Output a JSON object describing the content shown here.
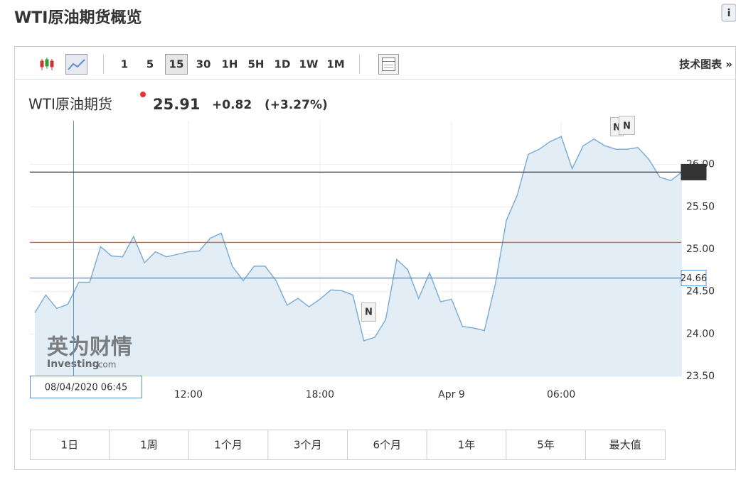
{
  "header": {
    "title": "WTI原油期货概览"
  },
  "toolbar": {
    "intervals": [
      "1",
      "5",
      "15",
      "30",
      "1H",
      "5H",
      "1D",
      "1W",
      "1M"
    ],
    "selected_index": 2,
    "link": "技术图表 »"
  },
  "quote": {
    "name": "WTI原油期货",
    "price": 25.91,
    "change": "+0.82",
    "change_pct": "(+3.27%)"
  },
  "chart_data": {
    "type": "line",
    "categories": [
      null,
      null,
      null,
      null,
      null,
      null,
      null,
      null,
      null,
      null,
      null,
      null,
      null,
      null,
      "12:00",
      null,
      null,
      null,
      null,
      null,
      null,
      null,
      null,
      null,
      null,
      null,
      "18:00",
      null,
      null,
      null,
      null,
      null,
      null,
      null,
      null,
      null,
      null,
      null,
      "Apr 9",
      null,
      null,
      null,
      null,
      null,
      null,
      null,
      null,
      null,
      "06:00",
      null,
      null,
      null,
      null,
      null,
      null,
      null,
      null,
      null,
      null,
      null
    ],
    "values": [
      24.25,
      24.46,
      24.3,
      24.35,
      24.61,
      24.61,
      25.03,
      24.92,
      24.91,
      25.15,
      24.84,
      24.97,
      24.91,
      24.94,
      24.97,
      24.98,
      25.13,
      25.19,
      24.8,
      24.63,
      24.8,
      24.8,
      24.63,
      24.34,
      24.42,
      24.32,
      24.41,
      24.52,
      24.51,
      24.46,
      23.92,
      23.96,
      24.17,
      24.88,
      24.76,
      24.42,
      24.72,
      24.38,
      24.41,
      24.09,
      24.07,
      24.04,
      24.59,
      25.34,
      25.64,
      26.12,
      26.18,
      26.27,
      26.33,
      25.95,
      26.22,
      26.3,
      26.22,
      26.18,
      26.18,
      26.2,
      26.06,
      25.85,
      25.81,
      25.91
    ],
    "color": "#7eaed6",
    "ylim": [
      23.5,
      26.5
    ],
    "yticks": [
      {
        "value": 23.5,
        "label": "23.50"
      },
      {
        "value": 24,
        "label": "24.00"
      },
      {
        "value": 24.5,
        "label": "24.50"
      },
      {
        "value": 25,
        "label": "25.00"
      },
      {
        "value": 25.5,
        "label": "25.50"
      },
      {
        "value": 26,
        "label": "26.00"
      }
    ],
    "grid": true,
    "lines": [
      {
        "value": 25.91,
        "color": "#333333",
        "labeled": true
      },
      {
        "value": 25.08,
        "color": "#e05a5a",
        "labeled": false
      },
      {
        "value": 24.66,
        "color": "#5b8fd6",
        "labeled": true
      }
    ],
    "crosshair_label": "08/04/2020 06:45",
    "annotations": [
      "N",
      "N",
      "N"
    ],
    "watermark": [
      "英为财情",
      "Investing",
      ".com"
    ]
  },
  "ranges": [
    "1日",
    "1周",
    "1个月",
    "3个月",
    "6个月",
    "1年",
    "5年",
    "最大值"
  ]
}
